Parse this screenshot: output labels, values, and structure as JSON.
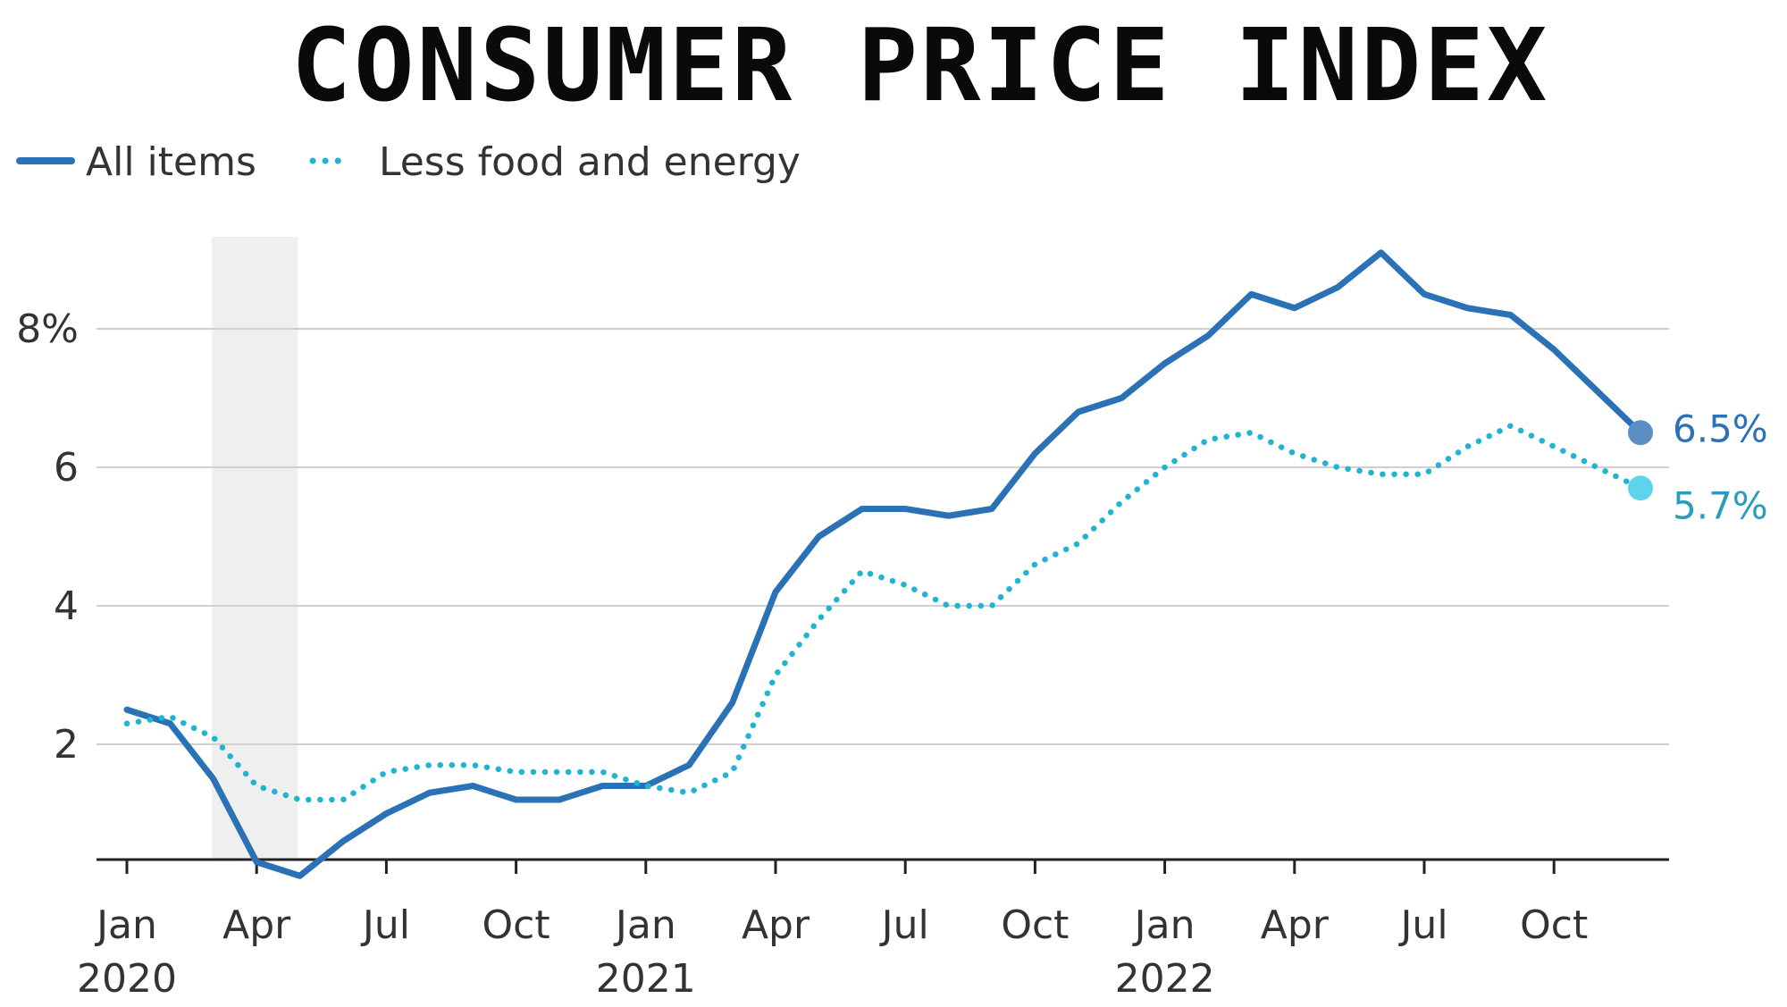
{
  "chart_data": {
    "type": "line",
    "title": "CONSUMER PRICE INDEX",
    "legend": [
      {
        "label": "All items",
        "style": "solid",
        "color": "#2a72b5"
      },
      {
        "label": "Less food and energy",
        "style": "dotted",
        "color": "#21b4d2"
      }
    ],
    "legend_position": "top-left",
    "grid": true,
    "shaded_period": {
      "start": "2020-03",
      "end": "2020-04",
      "color": "#efefef"
    },
    "y_ticks": [
      {
        "value": 2,
        "label": "2"
      },
      {
        "value": 4,
        "label": "4"
      },
      {
        "value": 6,
        "label": "6"
      },
      {
        "value": 8,
        "label": "8%"
      }
    ],
    "ylim": [
      0,
      9.2
    ],
    "x_ticks": [
      {
        "date": "2020-01",
        "label": "Jan",
        "year": "2020"
      },
      {
        "date": "2020-04",
        "label": "Apr",
        "year": ""
      },
      {
        "date": "2020-07",
        "label": "Jul",
        "year": ""
      },
      {
        "date": "2020-10",
        "label": "Oct",
        "year": ""
      },
      {
        "date": "2021-01",
        "label": "Jan",
        "year": "2021"
      },
      {
        "date": "2021-04",
        "label": "Apr",
        "year": ""
      },
      {
        "date": "2021-07",
        "label": "Jul",
        "year": ""
      },
      {
        "date": "2021-10",
        "label": "Oct",
        "year": ""
      },
      {
        "date": "2022-01",
        "label": "Jan",
        "year": "2022"
      },
      {
        "date": "2022-04",
        "label": "Apr",
        "year": ""
      },
      {
        "date": "2022-07",
        "label": "Jul",
        "year": ""
      },
      {
        "date": "2022-10",
        "label": "Oct",
        "year": ""
      }
    ],
    "x": [
      "2020-01",
      "2020-02",
      "2020-03",
      "2020-04",
      "2020-05",
      "2020-06",
      "2020-07",
      "2020-08",
      "2020-09",
      "2020-10",
      "2020-11",
      "2020-12",
      "2021-01",
      "2021-02",
      "2021-03",
      "2021-04",
      "2021-05",
      "2021-06",
      "2021-07",
      "2021-08",
      "2021-09",
      "2021-10",
      "2021-11",
      "2021-12",
      "2022-01",
      "2022-02",
      "2022-03",
      "2022-04",
      "2022-05",
      "2022-06",
      "2022-07",
      "2022-08",
      "2022-09",
      "2022-10",
      "2022-11",
      "2022-12"
    ],
    "series": [
      {
        "name": "All items",
        "end_label": "6.5%",
        "values": [
          2.5,
          2.3,
          1.5,
          0.3,
          0.1,
          0.6,
          1.0,
          1.3,
          1.4,
          1.2,
          1.2,
          1.4,
          1.4,
          1.7,
          2.6,
          4.2,
          5.0,
          5.4,
          5.4,
          5.3,
          5.4,
          6.2,
          6.8,
          7.0,
          7.5,
          7.9,
          8.5,
          8.3,
          8.6,
          9.1,
          8.5,
          8.3,
          8.2,
          7.7,
          7.1,
          6.5
        ]
      },
      {
        "name": "Less food and energy",
        "end_label": "5.7%",
        "values": [
          2.3,
          2.4,
          2.1,
          1.4,
          1.2,
          1.2,
          1.6,
          1.7,
          1.7,
          1.6,
          1.6,
          1.6,
          1.4,
          1.3,
          1.6,
          3.0,
          3.8,
          4.5,
          4.3,
          4.0,
          4.0,
          4.6,
          4.9,
          5.5,
          6.0,
          6.4,
          6.5,
          6.2,
          6.0,
          5.9,
          5.9,
          6.3,
          6.6,
          6.3,
          6.0,
          5.7
        ]
      }
    ]
  }
}
